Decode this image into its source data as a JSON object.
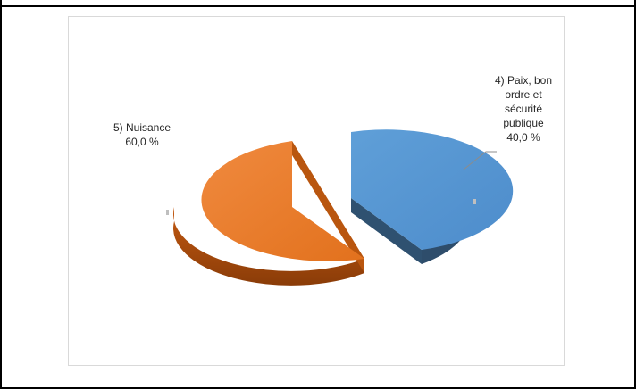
{
  "chart_data": {
    "type": "pie",
    "style": "3d-exploded",
    "slices": [
      {
        "label": "4) Paix, bon ordre et sécurité publique",
        "value": 40.0,
        "value_label": "40,0 %",
        "color": "#5b9bd5"
      },
      {
        "label": "5) Nuisance",
        "value": 60.0,
        "value_label": "60,0 %",
        "color": "#ed7d31"
      }
    ],
    "legend": "none"
  },
  "labels": {
    "paix": {
      "line1": "4) Paix, bon",
      "line2": "ordre et",
      "line3": "sécurité",
      "line4": "publique",
      "line5": "40,0 %"
    },
    "nuisance": {
      "line1": "5) Nuisance",
      "line2": "60,0 %"
    }
  }
}
